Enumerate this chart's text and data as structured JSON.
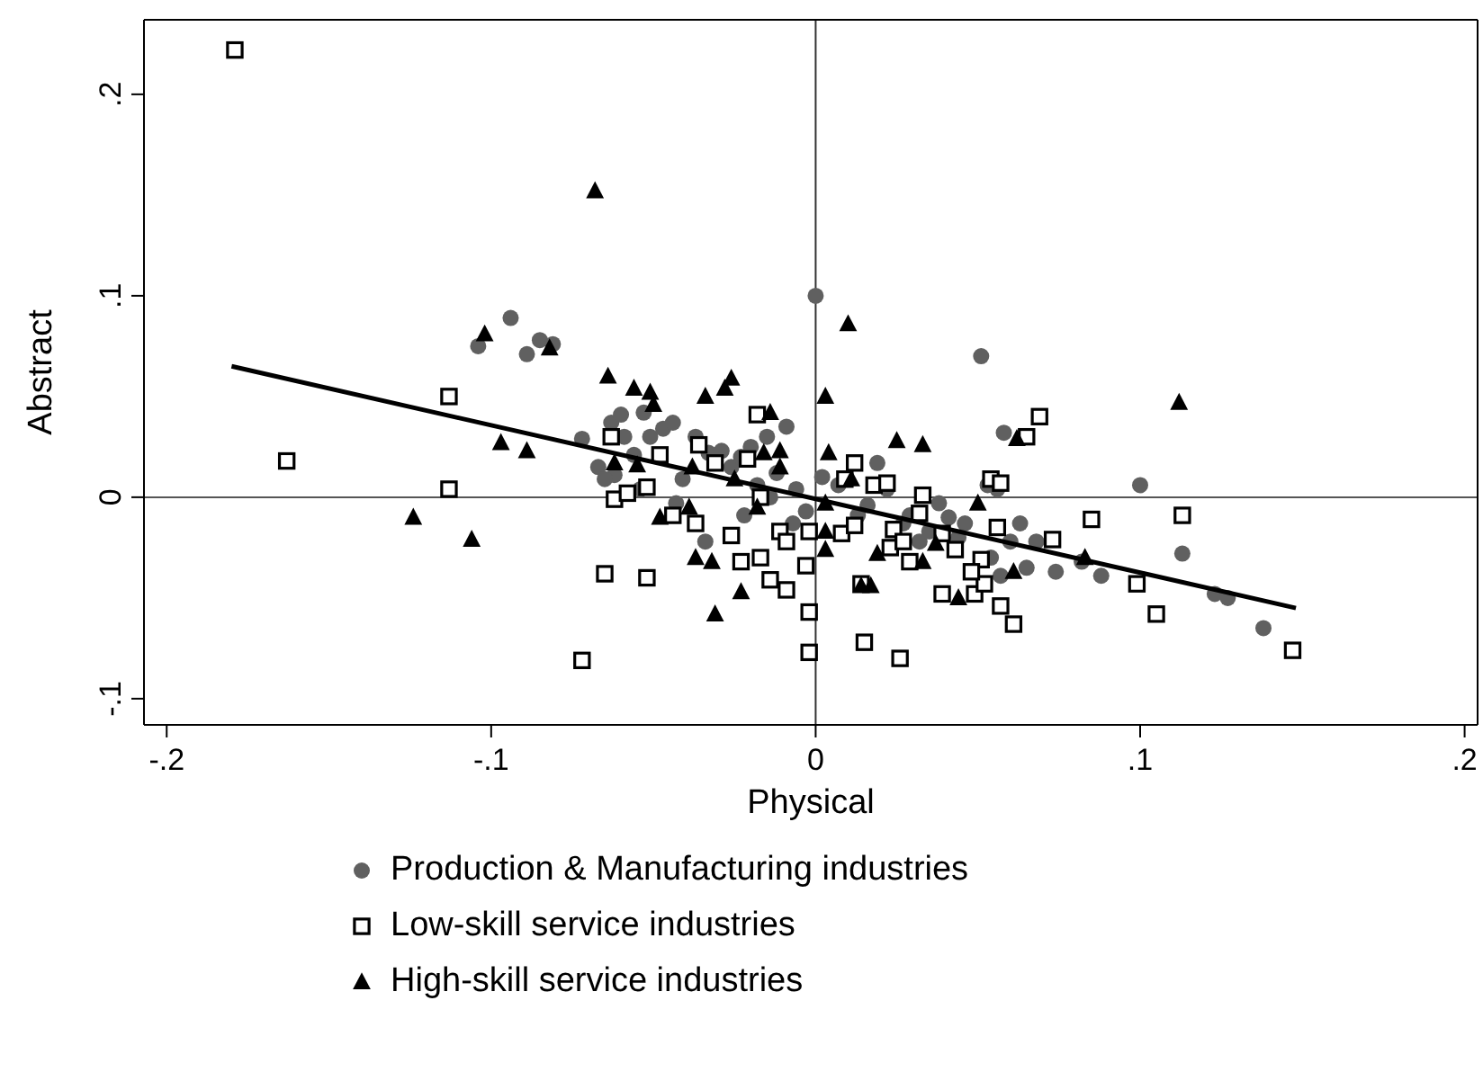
{
  "chart_data": {
    "type": "scatter",
    "xlabel": "Physical",
    "ylabel": "Abstract",
    "xlim": [
      -0.207,
      0.204
    ],
    "ylim": [
      -0.113,
      0.237
    ],
    "xticks": [
      {
        "value": -0.2,
        "label": "-.2"
      },
      {
        "value": -0.1,
        "label": "-.1"
      },
      0,
      {
        "value": 0.1,
        "label": ".1"
      },
      {
        "value": 0.2,
        "label": ".2"
      }
    ],
    "yticks": [
      {
        "value": -0.1,
        "label": "-.1"
      },
      0,
      {
        "value": 0.1,
        "label": ".1"
      },
      {
        "value": 0.2,
        "label": ".2"
      }
    ],
    "legend": "bottom",
    "ref_lines": [
      {
        "axis": "x",
        "value": 0,
        "color": "#333333"
      },
      {
        "axis": "y",
        "value": 0,
        "color": "#555555"
      }
    ],
    "series": [
      {
        "name": "Production & Manufacturing industries",
        "marker": "circle",
        "color": "#606060",
        "x": [
          -0.104,
          -0.094,
          -0.089,
          -0.085,
          -0.081,
          -0.072,
          -0.067,
          -0.063,
          -0.06,
          -0.056,
          -0.053,
          -0.062,
          -0.059,
          -0.051,
          -0.047,
          -0.044,
          -0.041,
          -0.037,
          -0.033,
          -0.029,
          -0.026,
          -0.023,
          -0.02,
          -0.018,
          -0.015,
          -0.012,
          -0.009,
          -0.006,
          -0.003,
          0.0,
          0.002,
          0.007,
          0.013,
          0.016,
          0.019,
          0.022,
          0.027,
          0.029,
          0.032,
          0.035,
          0.038,
          0.041,
          0.044,
          0.046,
          0.051,
          0.053,
          0.056,
          0.057,
          0.06,
          0.063,
          0.065,
          0.068,
          0.074,
          0.082,
          0.088,
          0.1,
          0.113,
          0.123,
          0.138,
          0.127,
          0.054,
          -0.007,
          -0.014,
          -0.022,
          -0.034,
          -0.043,
          -0.054,
          -0.065,
          0.058
        ],
        "values": [
          0.075,
          0.089,
          0.071,
          0.078,
          0.076,
          0.029,
          0.015,
          0.037,
          0.041,
          0.021,
          0.042,
          0.011,
          0.03,
          0.03,
          0.034,
          0.037,
          0.009,
          0.03,
          0.022,
          0.023,
          0.015,
          0.02,
          0.025,
          0.006,
          0.03,
          0.012,
          0.035,
          0.004,
          -0.007,
          0.1,
          0.01,
          0.006,
          -0.009,
          -0.004,
          0.017,
          0.004,
          -0.013,
          -0.009,
          -0.022,
          -0.017,
          -0.003,
          -0.01,
          -0.02,
          -0.013,
          0.07,
          0.006,
          0.004,
          -0.039,
          -0.022,
          -0.013,
          -0.035,
          -0.022,
          -0.037,
          -0.032,
          -0.039,
          0.006,
          -0.028,
          -0.048,
          -0.065,
          -0.05,
          -0.03,
          -0.013,
          0.0,
          -0.009,
          -0.022,
          -0.003,
          0.004,
          0.009,
          0.032
        ]
      },
      {
        "name": "Low-skill service industries",
        "marker": "square",
        "color": "#000000",
        "x": [
          -0.179,
          -0.163,
          -0.113,
          -0.113,
          -0.065,
          -0.052,
          -0.072,
          -0.063,
          -0.062,
          -0.058,
          -0.052,
          -0.036,
          -0.044,
          -0.037,
          -0.031,
          -0.021,
          -0.026,
          -0.023,
          -0.017,
          -0.017,
          -0.018,
          -0.011,
          -0.009,
          -0.002,
          -0.003,
          -0.002,
          -0.002,
          0.008,
          0.009,
          0.014,
          0.015,
          0.018,
          0.023,
          0.024,
          0.029,
          0.032,
          0.039,
          0.039,
          0.043,
          0.049,
          0.051,
          0.052,
          0.054,
          0.057,
          0.065,
          0.069,
          0.061,
          0.085,
          0.113,
          0.099,
          0.105,
          0.147,
          0.073,
          0.056,
          0.048,
          0.012,
          0.027,
          0.012,
          0.022,
          0.033,
          0.057,
          0.026,
          -0.009,
          -0.014,
          -0.048
        ],
        "values": [
          0.222,
          0.018,
          0.05,
          0.004,
          -0.038,
          -0.04,
          -0.081,
          0.03,
          -0.001,
          0.002,
          0.005,
          0.026,
          -0.009,
          -0.013,
          0.017,
          0.019,
          -0.019,
          -0.032,
          -0.03,
          0.0,
          0.041,
          -0.017,
          -0.022,
          -0.017,
          -0.034,
          -0.057,
          -0.077,
          -0.018,
          0.009,
          -0.043,
          -0.072,
          0.006,
          -0.025,
          -0.016,
          -0.032,
          -0.008,
          -0.018,
          -0.048,
          -0.026,
          -0.048,
          -0.031,
          -0.043,
          0.009,
          -0.054,
          0.03,
          0.04,
          -0.063,
          -0.011,
          -0.009,
          -0.043,
          -0.058,
          -0.076,
          -0.021,
          -0.015,
          -0.037,
          -0.014,
          -0.022,
          0.017,
          0.007,
          0.001,
          0.007,
          -0.08,
          -0.046,
          -0.041,
          0.021
        ]
      },
      {
        "name": "High-skill service industries",
        "marker": "triangle",
        "color": "#000000",
        "x": [
          -0.031,
          -0.023,
          -0.124,
          -0.106,
          -0.097,
          -0.089,
          -0.102,
          -0.082,
          -0.068,
          -0.064,
          -0.062,
          -0.055,
          -0.048,
          -0.056,
          -0.051,
          -0.05,
          -0.034,
          -0.028,
          -0.026,
          -0.014,
          0.003,
          -0.039,
          -0.037,
          -0.032,
          -0.016,
          -0.011,
          -0.011,
          -0.018,
          -0.025,
          -0.038,
          0.003,
          0.004,
          0.003,
          0.003,
          0.01,
          0.025,
          0.033,
          0.011,
          0.05,
          0.062,
          0.014,
          0.017,
          0.033,
          0.037,
          0.044,
          0.061,
          0.083,
          0.019,
          0.112
        ],
        "values": [
          -0.058,
          -0.047,
          -0.01,
          -0.021,
          0.027,
          0.023,
          0.081,
          0.074,
          0.152,
          0.06,
          0.017,
          0.016,
          -0.01,
          0.054,
          0.052,
          0.046,
          0.05,
          0.054,
          0.059,
          0.042,
          0.05,
          -0.005,
          -0.03,
          -0.032,
          0.022,
          0.023,
          0.015,
          -0.005,
          0.009,
          0.015,
          -0.003,
          0.022,
          -0.017,
          -0.026,
          0.086,
          0.028,
          0.026,
          0.009,
          -0.003,
          0.029,
          -0.044,
          -0.044,
          -0.032,
          -0.023,
          -0.05,
          -0.037,
          -0.03,
          -0.028,
          0.047
        ]
      },
      {
        "type": "line",
        "color": "#000000",
        "x": [
          -0.18,
          0.148
        ],
        "values": [
          0.065,
          -0.055
        ]
      }
    ]
  }
}
